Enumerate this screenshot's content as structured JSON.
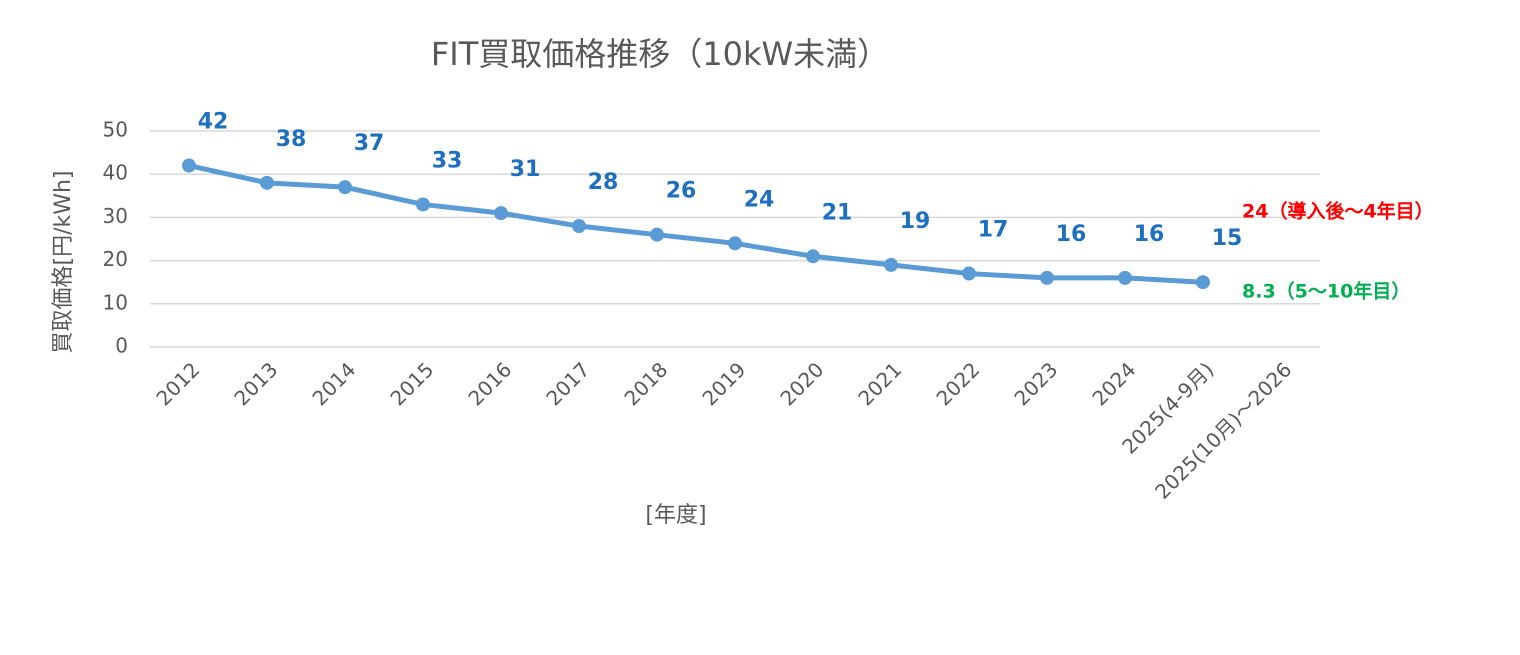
{
  "chart_data": {
    "type": "line",
    "title": "FIT買取価格推移（10kW未満）",
    "y_label": "買取価格[円/kWh]",
    "x_label": "[年度]",
    "categories": [
      "2012",
      "2013",
      "2014",
      "2015",
      "2016",
      "2017",
      "2018",
      "2019",
      "2020",
      "2021",
      "2022",
      "2023",
      "2024",
      "2025(4-9月)",
      "2025(10月)～2026"
    ],
    "values": [
      42,
      38,
      37,
      33,
      31,
      28,
      26,
      24,
      21,
      19,
      17,
      16,
      16,
      15,
      null
    ],
    "color": "#5b9bd5",
    "data_label_color": "#1f6fbf",
    "ylim": [
      0,
      50
    ],
    "yticks": [
      0,
      10,
      20,
      30,
      40,
      50
    ],
    "grid": true,
    "annotations": [
      {
        "text": "24（導入後～4年目）",
        "color": "#ff0000"
      },
      {
        "text": "8.3（5～10年目）",
        "color": "#00b050"
      }
    ]
  }
}
